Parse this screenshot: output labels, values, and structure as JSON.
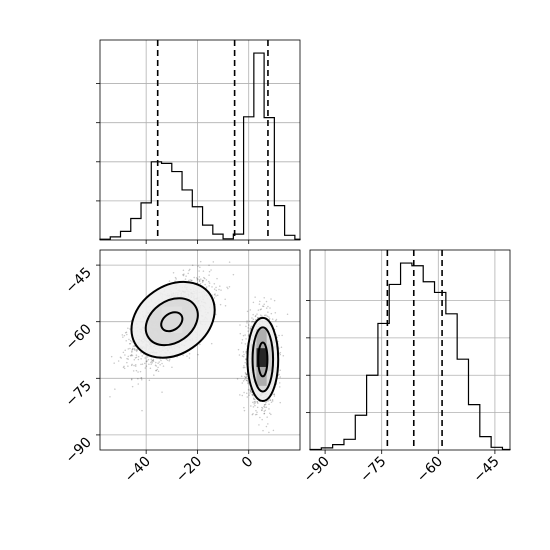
{
  "chart_data": [
    {
      "panel": "x-marginal-histogram",
      "type": "histogram",
      "variable": "x",
      "xlim": [
        -58,
        20
      ],
      "bins": [
        {
          "x0": -58,
          "x1": -54,
          "count": 2
        },
        {
          "x0": -54,
          "x1": -50,
          "count": 8
        },
        {
          "x0": -50,
          "x1": -46,
          "count": 22
        },
        {
          "x0": -46,
          "x1": -42,
          "count": 55
        },
        {
          "x0": -42,
          "x1": -38,
          "count": 95
        },
        {
          "x0": -38,
          "x1": -34,
          "count": 200
        },
        {
          "x0": -34,
          "x1": -30,
          "count": 196
        },
        {
          "x0": -30,
          "x1": -26,
          "count": 175
        },
        {
          "x0": -26,
          "x1": -22,
          "count": 128
        },
        {
          "x0": -22,
          "x1": -18,
          "count": 85
        },
        {
          "x0": -18,
          "x1": -14,
          "count": 38
        },
        {
          "x0": -14,
          "x1": -10,
          "count": 15
        },
        {
          "x0": -10,
          "x1": -6,
          "count": 3
        },
        {
          "x0": -6,
          "x1": -2,
          "count": 15
        },
        {
          "x0": -2,
          "x1": 2,
          "count": 315
        },
        {
          "x0": 2,
          "x1": 6,
          "count": 478
        },
        {
          "x0": 6,
          "x1": 10,
          "count": 313
        },
        {
          "x0": 10,
          "x1": 14,
          "count": 88
        },
        {
          "x0": 14,
          "x1": 18,
          "count": 12
        },
        {
          "x0": 18,
          "x1": 20,
          "count": 2
        }
      ],
      "quantile_lines": [
        -35.5,
        -5.5,
        7.5
      ],
      "grid": true
    },
    {
      "panel": "joint-2d-histogram",
      "type": "scatter",
      "xlim": [
        -58,
        20
      ],
      "ylim": [
        -94,
        -41
      ],
      "xticks": [
        -40,
        -20,
        0
      ],
      "yticks": [
        -45,
        -60,
        -75,
        -90
      ],
      "clusters": [
        {
          "center": [
            -30,
            -60
          ],
          "spread": [
            7.5,
            5.5
          ],
          "correlation": 0.6,
          "n": 1800
        },
        {
          "center": [
            5,
            -70
          ],
          "spread": [
            2.8,
            5.5
          ],
          "correlation": 0.0,
          "n": 1800
        }
      ],
      "contours": [
        {
          "center": [
            -30,
            -60
          ],
          "rx": 4.5,
          "ry": 2.2,
          "rotation_deg": -35
        },
        {
          "center": [
            -30,
            -60
          ],
          "rx": 11.0,
          "ry": 5.5,
          "rotation_deg": -35
        },
        {
          "center": [
            -29.5,
            -59.5
          ],
          "rx": 17.5,
          "ry": 9.0,
          "rotation_deg": -35
        },
        {
          "center": [
            5.5,
            -70
          ],
          "rx": 1.8,
          "ry": 4.5,
          "rotation_deg": 0
        },
        {
          "center": [
            5.5,
            -70
          ],
          "rx": 4.0,
          "ry": 8.5,
          "rotation_deg": 0
        },
        {
          "center": [
            5.5,
            -70
          ],
          "rx": 6.0,
          "ry": 11.0,
          "rotation_deg": 0
        }
      ],
      "density_cells": [
        {
          "x": [
            3,
            7
          ],
          "y": [
            -72,
            -67
          ],
          "level": 0.95
        },
        {
          "x": [
            3,
            7
          ],
          "y": [
            -67,
            -62
          ],
          "level": 0.35
        },
        {
          "x": [
            3,
            7
          ],
          "y": [
            -77,
            -72
          ],
          "level": 0.35
        },
        {
          "x": [
            1,
            3
          ],
          "y": [
            -73,
            -66
          ],
          "level": 0.2
        },
        {
          "x": [
            7,
            9
          ],
          "y": [
            -73,
            -66
          ],
          "level": 0.2
        },
        {
          "x": [
            -34,
            -26
          ],
          "y": [
            -63,
            -56
          ],
          "level": 0.12
        }
      ],
      "grid": true
    },
    {
      "panel": "y-marginal-histogram",
      "type": "histogram",
      "variable": "y",
      "xlim": [
        -94,
        -41
      ],
      "xticks": [
        -90,
        -75,
        -60,
        -45
      ],
      "bins": [
        {
          "x0": -94,
          "x1": -91,
          "count": 1
        },
        {
          "x0": -91,
          "x1": -88,
          "count": 4
        },
        {
          "x0": -88,
          "x1": -85,
          "count": 10
        },
        {
          "x0": -85,
          "x1": -82,
          "count": 20
        },
        {
          "x0": -82,
          "x1": -79,
          "count": 65
        },
        {
          "x0": -79,
          "x1": -76,
          "count": 140
        },
        {
          "x0": -76,
          "x1": -73,
          "count": 237
        },
        {
          "x0": -73,
          "x1": -70,
          "count": 310
        },
        {
          "x0": -70,
          "x1": -67,
          "count": 350
        },
        {
          "x0": -67,
          "x1": -64,
          "count": 345
        },
        {
          "x0": -64,
          "x1": -61,
          "count": 315
        },
        {
          "x0": -61,
          "x1": -58,
          "count": 295
        },
        {
          "x0": -58,
          "x1": -55,
          "count": 255
        },
        {
          "x0": -55,
          "x1": -52,
          "count": 170
        },
        {
          "x0": -52,
          "x1": -49,
          "count": 85
        },
        {
          "x0": -49,
          "x1": -46,
          "count": 25
        },
        {
          "x0": -46,
          "x1": -43,
          "count": 5
        },
        {
          "x0": -43,
          "x1": -41,
          "count": 1
        }
      ],
      "quantile_lines": [
        -73.5,
        -66.5,
        -59
      ],
      "grid": true
    }
  ]
}
